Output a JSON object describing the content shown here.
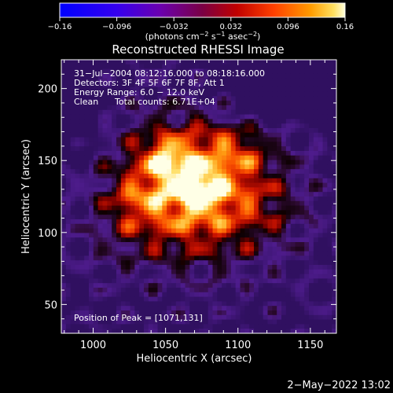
{
  "chart_data": {
    "type": "heatmap",
    "title": "Reconstructed RHESSI Image",
    "xlabel": "Heliocentric X (arcsec)",
    "ylabel": "Heliocentric Y (arcsec)",
    "xlim": [
      978,
      1168
    ],
    "ylim": [
      30,
      220
    ],
    "x_ticks": [
      1000,
      1050,
      1100,
      1150
    ],
    "y_ticks": [
      50,
      100,
      150,
      200
    ],
    "colorbar": {
      "range": [
        -0.16,
        0.16
      ],
      "tick_values": [
        -0.16,
        -0.096,
        -0.032,
        0.032,
        0.096,
        0.16
      ],
      "tick_labels": [
        "−0.16",
        "−0.096",
        "−0.032",
        "0.032",
        "0.096",
        "0.16"
      ],
      "unit_prefix": "(photons cm",
      "unit_exp1": "−2",
      "unit_mid1": " s",
      "unit_exp2": "−1",
      "unit_mid2": " asec",
      "unit_exp3": "−2",
      "unit_suffix": ")"
    },
    "annotations": {
      "time_range": "31−Jul−2004 08:12:16.000 to 08:18:16.000",
      "detectors": "Detectors: 3F 4F 5F 6F 7F 8F, Att 1",
      "energy_range": "Energy Range: 6.0 − 12.0 keV",
      "clean_label": "Clean",
      "total_counts": "Total counts: 6.71E+04",
      "peak_position": "Position of Peak = [1071,131]"
    },
    "peak": [
      1071,
      131
    ],
    "grid": false
  },
  "footer": {
    "timestamp": "2−May−2022 13:02"
  }
}
